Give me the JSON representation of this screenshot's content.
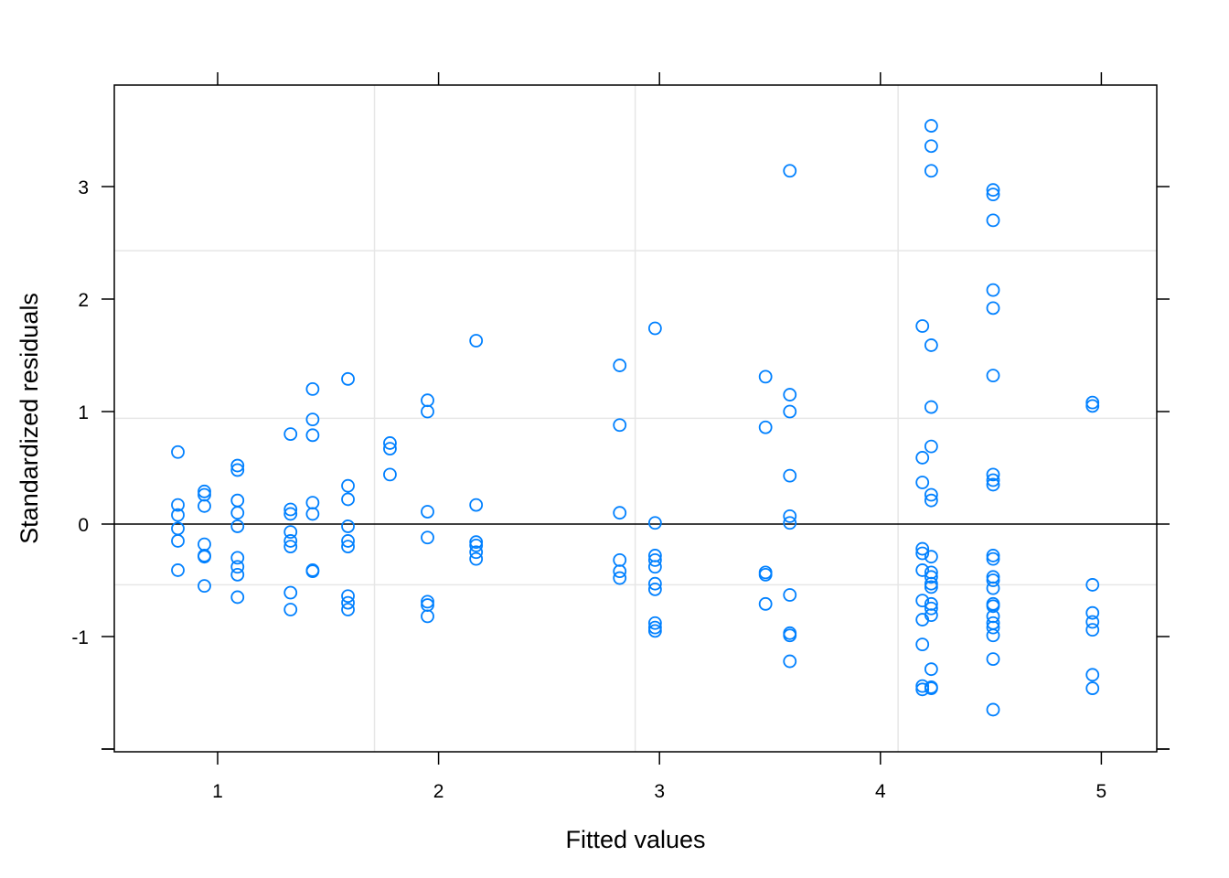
{
  "chart_data": {
    "type": "scatter",
    "title": "",
    "xlabel": "Fitted values",
    "ylabel": "Standardized residuals",
    "xlim": [
      0.53,
      5.25
    ],
    "ylim": [
      -2.0,
      3.9
    ],
    "xticks": [
      1,
      2,
      3,
      4,
      5
    ],
    "yticks": [
      -1,
      0,
      1,
      2,
      3
    ],
    "grid": true,
    "reference_line_y": 0,
    "marker": "open-circle",
    "colors": {
      "points": "#0080ff",
      "grid": "#e6e6e6",
      "axis": "#000000"
    },
    "points": [
      {
        "x": 0.82,
        "y": 0.64
      },
      {
        "x": 0.82,
        "y": 0.17
      },
      {
        "x": 0.82,
        "y": 0.08
      },
      {
        "x": 0.82,
        "y": -0.04
      },
      {
        "x": 0.82,
        "y": -0.15
      },
      {
        "x": 0.82,
        "y": -0.41
      },
      {
        "x": 0.94,
        "y": 0.29
      },
      {
        "x": 0.94,
        "y": 0.26
      },
      {
        "x": 0.94,
        "y": 0.16
      },
      {
        "x": 0.94,
        "y": -0.18
      },
      {
        "x": 0.94,
        "y": -0.28
      },
      {
        "x": 0.94,
        "y": -0.29
      },
      {
        "x": 0.94,
        "y": -0.55
      },
      {
        "x": 1.09,
        "y": 0.52
      },
      {
        "x": 1.09,
        "y": 0.48
      },
      {
        "x": 1.09,
        "y": 0.21
      },
      {
        "x": 1.09,
        "y": 0.1
      },
      {
        "x": 1.09,
        "y": -0.02
      },
      {
        "x": 1.09,
        "y": -0.3
      },
      {
        "x": 1.09,
        "y": -0.38
      },
      {
        "x": 1.09,
        "y": -0.45
      },
      {
        "x": 1.09,
        "y": -0.65
      },
      {
        "x": 1.33,
        "y": 0.8
      },
      {
        "x": 1.33,
        "y": 0.13
      },
      {
        "x": 1.33,
        "y": 0.09
      },
      {
        "x": 1.33,
        "y": -0.07
      },
      {
        "x": 1.33,
        "y": -0.15
      },
      {
        "x": 1.33,
        "y": -0.2
      },
      {
        "x": 1.33,
        "y": -0.61
      },
      {
        "x": 1.33,
        "y": -0.76
      },
      {
        "x": 1.43,
        "y": 1.2
      },
      {
        "x": 1.43,
        "y": 0.93
      },
      {
        "x": 1.43,
        "y": 0.79
      },
      {
        "x": 1.43,
        "y": 0.19
      },
      {
        "x": 1.43,
        "y": 0.09
      },
      {
        "x": 1.43,
        "y": -0.41
      },
      {
        "x": 1.43,
        "y": -0.42
      },
      {
        "x": 1.59,
        "y": 1.29
      },
      {
        "x": 1.59,
        "y": 0.34
      },
      {
        "x": 1.59,
        "y": 0.22
      },
      {
        "x": 1.59,
        "y": -0.02
      },
      {
        "x": 1.59,
        "y": -0.15
      },
      {
        "x": 1.59,
        "y": -0.2
      },
      {
        "x": 1.59,
        "y": -0.64
      },
      {
        "x": 1.59,
        "y": -0.7
      },
      {
        "x": 1.59,
        "y": -0.76
      },
      {
        "x": 1.78,
        "y": 0.72
      },
      {
        "x": 1.78,
        "y": 0.67
      },
      {
        "x": 1.78,
        "y": 0.44
      },
      {
        "x": 1.95,
        "y": 1.1
      },
      {
        "x": 1.95,
        "y": 1.0
      },
      {
        "x": 1.95,
        "y": 0.11
      },
      {
        "x": 1.95,
        "y": -0.12
      },
      {
        "x": 1.95,
        "y": -0.69
      },
      {
        "x": 1.95,
        "y": -0.72
      },
      {
        "x": 1.95,
        "y": -0.82
      },
      {
        "x": 2.17,
        "y": 1.63
      },
      {
        "x": 2.17,
        "y": 0.17
      },
      {
        "x": 2.17,
        "y": -0.16
      },
      {
        "x": 2.17,
        "y": -0.19
      },
      {
        "x": 2.17,
        "y": -0.25
      },
      {
        "x": 2.17,
        "y": -0.31
      },
      {
        "x": 2.82,
        "y": 1.41
      },
      {
        "x": 2.82,
        "y": 0.88
      },
      {
        "x": 2.82,
        "y": 0.1
      },
      {
        "x": 2.82,
        "y": -0.32
      },
      {
        "x": 2.82,
        "y": -0.42
      },
      {
        "x": 2.82,
        "y": -0.48
      },
      {
        "x": 2.98,
        "y": 1.74
      },
      {
        "x": 2.98,
        "y": 0.01
      },
      {
        "x": 2.98,
        "y": -0.28
      },
      {
        "x": 2.98,
        "y": -0.32
      },
      {
        "x": 2.98,
        "y": -0.38
      },
      {
        "x": 2.98,
        "y": -0.53
      },
      {
        "x": 2.98,
        "y": -0.58
      },
      {
        "x": 2.98,
        "y": -0.88
      },
      {
        "x": 2.98,
        "y": -0.92
      },
      {
        "x": 2.98,
        "y": -0.95
      },
      {
        "x": 3.48,
        "y": 1.31
      },
      {
        "x": 3.48,
        "y": 0.86
      },
      {
        "x": 3.48,
        "y": -0.43
      },
      {
        "x": 3.48,
        "y": -0.45
      },
      {
        "x": 3.48,
        "y": -0.71
      },
      {
        "x": 3.59,
        "y": 3.14
      },
      {
        "x": 3.59,
        "y": 1.15
      },
      {
        "x": 3.59,
        "y": 1.0
      },
      {
        "x": 3.59,
        "y": 0.43
      },
      {
        "x": 3.59,
        "y": 0.07
      },
      {
        "x": 3.59,
        "y": 0.01
      },
      {
        "x": 3.59,
        "y": -0.63
      },
      {
        "x": 3.59,
        "y": -0.97
      },
      {
        "x": 3.59,
        "y": -0.99
      },
      {
        "x": 3.59,
        "y": -1.22
      },
      {
        "x": 4.19,
        "y": 1.76
      },
      {
        "x": 4.19,
        "y": 0.59
      },
      {
        "x": 4.19,
        "y": 0.37
      },
      {
        "x": 4.19,
        "y": -0.22
      },
      {
        "x": 4.19,
        "y": -0.26
      },
      {
        "x": 4.19,
        "y": -0.41
      },
      {
        "x": 4.19,
        "y": -0.68
      },
      {
        "x": 4.19,
        "y": -0.85
      },
      {
        "x": 4.19,
        "y": -1.07
      },
      {
        "x": 4.19,
        "y": -1.44
      },
      {
        "x": 4.19,
        "y": -1.47
      },
      {
        "x": 4.23,
        "y": 3.54
      },
      {
        "x": 4.23,
        "y": 3.36
      },
      {
        "x": 4.23,
        "y": 3.14
      },
      {
        "x": 4.23,
        "y": 1.59
      },
      {
        "x": 4.23,
        "y": 1.04
      },
      {
        "x": 4.23,
        "y": 0.69
      },
      {
        "x": 4.23,
        "y": 0.26
      },
      {
        "x": 4.23,
        "y": 0.21
      },
      {
        "x": 4.23,
        "y": -0.29
      },
      {
        "x": 4.23,
        "y": -0.43
      },
      {
        "x": 4.23,
        "y": -0.47
      },
      {
        "x": 4.23,
        "y": -0.53
      },
      {
        "x": 4.23,
        "y": -0.56
      },
      {
        "x": 4.23,
        "y": -0.71
      },
      {
        "x": 4.23,
        "y": -0.75
      },
      {
        "x": 4.23,
        "y": -0.81
      },
      {
        "x": 4.23,
        "y": -1.29
      },
      {
        "x": 4.23,
        "y": -1.45
      },
      {
        "x": 4.23,
        "y": -1.46
      },
      {
        "x": 4.51,
        "y": 2.97
      },
      {
        "x": 4.51,
        "y": 2.93
      },
      {
        "x": 4.51,
        "y": 2.7
      },
      {
        "x": 4.51,
        "y": 2.08
      },
      {
        "x": 4.51,
        "y": 1.92
      },
      {
        "x": 4.51,
        "y": 1.32
      },
      {
        "x": 4.51,
        "y": 0.44
      },
      {
        "x": 4.51,
        "y": 0.39
      },
      {
        "x": 4.51,
        "y": 0.35
      },
      {
        "x": 4.51,
        "y": -0.28
      },
      {
        "x": 4.51,
        "y": -0.31
      },
      {
        "x": 4.51,
        "y": -0.47
      },
      {
        "x": 4.51,
        "y": -0.5
      },
      {
        "x": 4.51,
        "y": -0.57
      },
      {
        "x": 4.51,
        "y": -0.71
      },
      {
        "x": 4.51,
        "y": -0.73
      },
      {
        "x": 4.51,
        "y": -0.82
      },
      {
        "x": 4.51,
        "y": -0.88
      },
      {
        "x": 4.51,
        "y": -0.92
      },
      {
        "x": 4.51,
        "y": -0.99
      },
      {
        "x": 4.51,
        "y": -1.2
      },
      {
        "x": 4.51,
        "y": -1.65
      },
      {
        "x": 4.96,
        "y": 1.08
      },
      {
        "x": 4.96,
        "y": 1.05
      },
      {
        "x": 4.96,
        "y": -0.54
      },
      {
        "x": 4.96,
        "y": -0.79
      },
      {
        "x": 4.96,
        "y": -0.87
      },
      {
        "x": 4.96,
        "y": -0.94
      },
      {
        "x": 4.96,
        "y": -1.34
      },
      {
        "x": 4.96,
        "y": -1.46
      }
    ]
  }
}
